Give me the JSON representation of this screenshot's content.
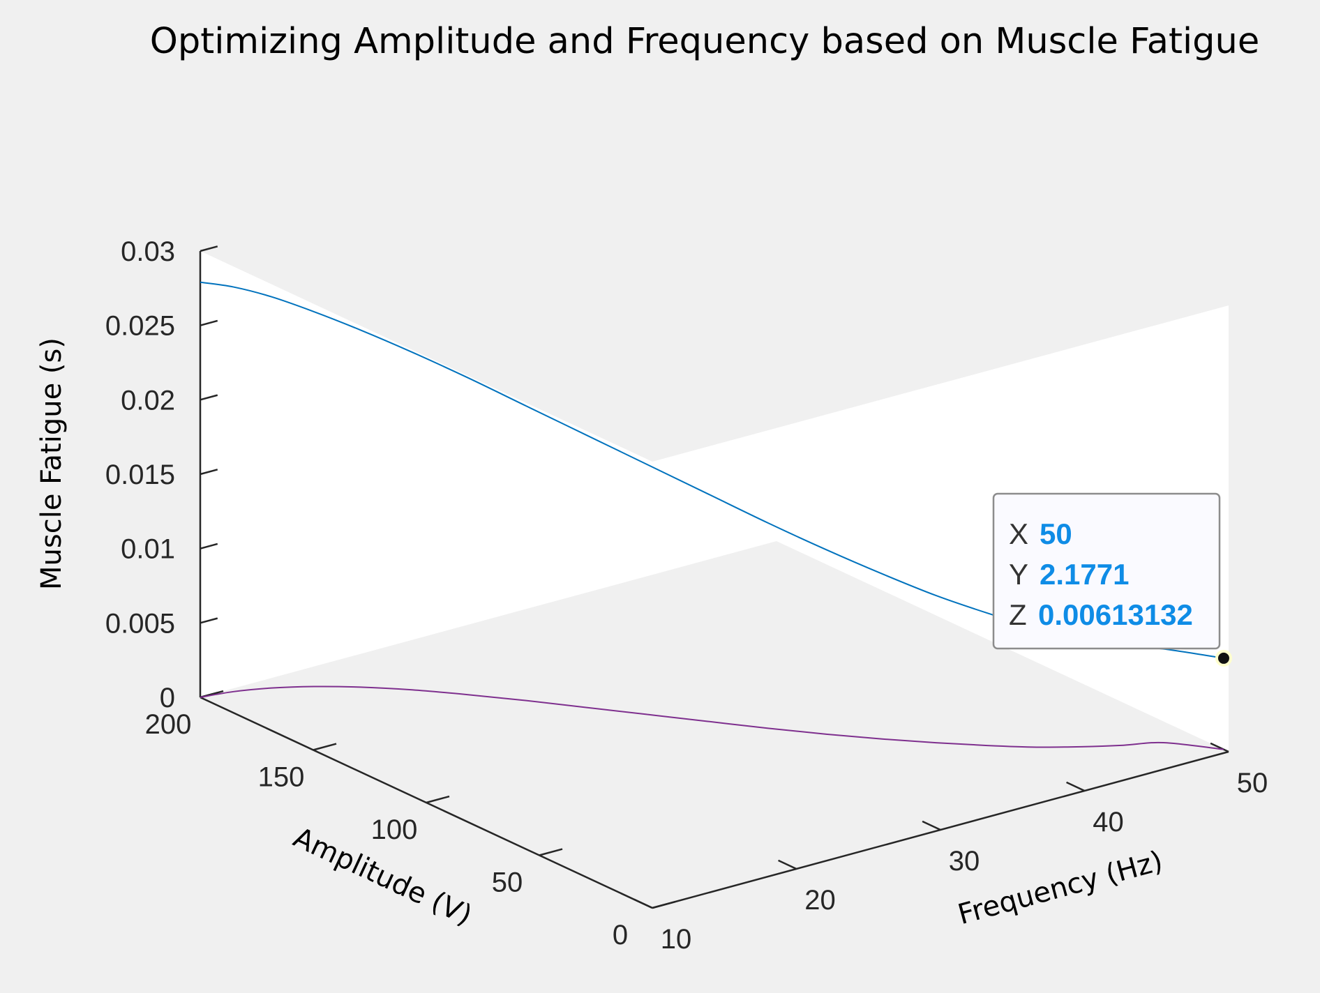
{
  "chart_data": {
    "type": "line3d",
    "title": "Optimizing Amplitude and Frequency based on Muscle Fatigue",
    "xlabel": "Frequency (Hz)",
    "ylabel": "Amplitude (V)",
    "zlabel": "Muscle Fatigue (s)",
    "xlim": [
      10,
      50
    ],
    "ylim": [
      0,
      200
    ],
    "zlim": [
      0,
      0.03
    ],
    "xticks": [
      "10",
      "20",
      "30",
      "40",
      "50"
    ],
    "yticks": [
      "0",
      "50",
      "100",
      "150",
      "200"
    ],
    "zticks": [
      "0",
      "0.005",
      "0.01",
      "0.015",
      "0.02",
      "0.025",
      "0.03"
    ],
    "grid": false,
    "series": [
      {
        "color": "#0072bd",
        "x": [
          10,
          12,
          14,
          16,
          18,
          20,
          22,
          24,
          26,
          28,
          30,
          32,
          34,
          36,
          38,
          40,
          42,
          44,
          46,
          48,
          50
        ],
        "y": [
          200,
          198,
          194,
          188,
          180,
          170,
          158,
          145,
          131,
          117,
          103,
          89,
          76,
          64,
          53,
          43,
          34,
          27,
          21,
          16,
          2.1771
        ],
        "z": [
          0.0279,
          0.0272,
          0.0263,
          0.0252,
          0.024,
          0.0227,
          0.0213,
          0.0198,
          0.0183,
          0.0168,
          0.0153,
          0.0138,
          0.0124,
          0.0111,
          0.0099,
          0.0089,
          0.008,
          0.0073,
          0.0067,
          0.0063,
          0.00613132
        ]
      },
      {
        "color": "#7e2f8e",
        "x": [
          10,
          12,
          14,
          16,
          18,
          20,
          22,
          24,
          26,
          28,
          30,
          32,
          34,
          36,
          38,
          40,
          42,
          44,
          46,
          48,
          50
        ],
        "y": [
          200,
          198,
          194,
          188,
          180,
          170,
          158,
          145,
          131,
          117,
          103,
          89,
          76,
          64,
          53,
          43,
          34,
          27,
          21,
          16,
          2.1771
        ],
        "z": [
          0,
          0,
          0,
          0,
          0,
          0,
          0,
          0,
          0,
          0,
          0,
          0,
          0,
          0,
          0,
          0,
          0,
          0,
          0,
          0,
          0
        ]
      }
    ],
    "datatip": {
      "x_label": "X",
      "x_value": "50",
      "y_label": "Y",
      "y_value": "2.1771",
      "z_label": "Z",
      "z_value": "0.00613132",
      "value_color": "#0f8ce6"
    }
  }
}
